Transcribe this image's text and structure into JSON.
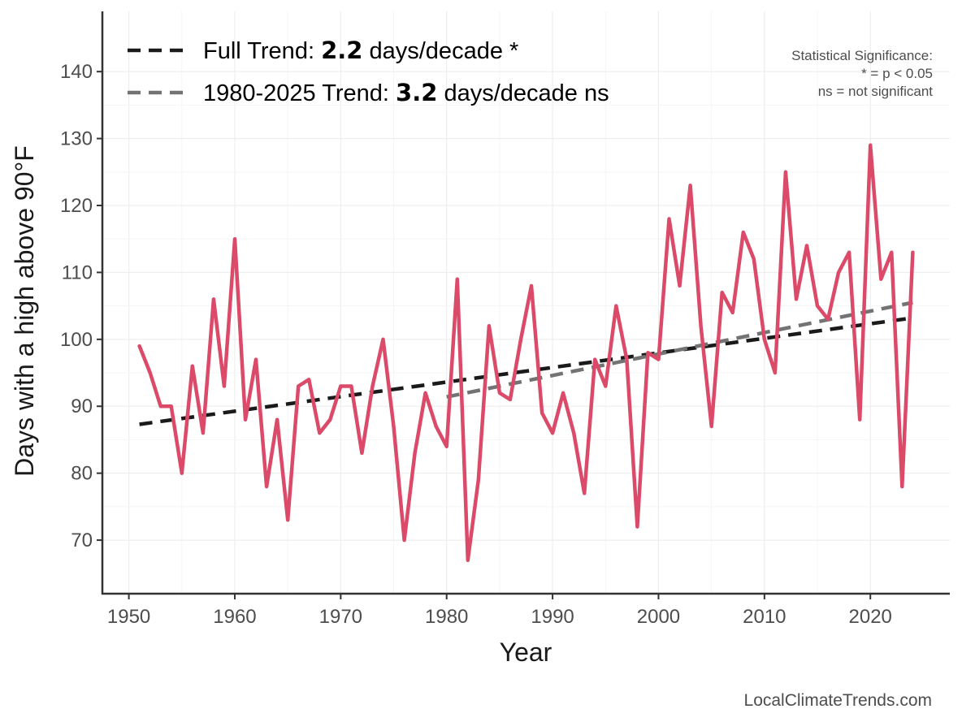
{
  "chart_data": {
    "type": "line",
    "title": "",
    "xlabel": "Year",
    "ylabel": "Days with a high above 90°F",
    "xlim": [
      1947.5,
      2027.5
    ],
    "ylim": [
      62,
      149
    ],
    "x_ticks": [
      1950,
      1960,
      1970,
      1980,
      1990,
      2000,
      2010,
      2020
    ],
    "y_ticks": [
      70,
      80,
      90,
      100,
      110,
      120,
      130,
      140
    ],
    "grid": true,
    "colors": {
      "series": "#dc4a6a",
      "full_trend": "#1a1a1a",
      "recent_trend": "#737373",
      "axis": "#333333",
      "grid": "#ebebeb"
    },
    "series": [
      {
        "name": "Days above 90°F",
        "x": [
          1951,
          1952,
          1953,
          1954,
          1955,
          1956,
          1957,
          1958,
          1959,
          1960,
          1961,
          1962,
          1963,
          1964,
          1965,
          1966,
          1967,
          1968,
          1969,
          1970,
          1971,
          1972,
          1973,
          1974,
          1975,
          1976,
          1977,
          1978,
          1979,
          1980,
          1981,
          1982,
          1983,
          1984,
          1985,
          1986,
          1987,
          1988,
          1989,
          1990,
          1991,
          1992,
          1993,
          1994,
          1995,
          1996,
          1997,
          1998,
          1999,
          2000,
          2001,
          2002,
          2003,
          2004,
          2005,
          2006,
          2007,
          2008,
          2009,
          2010,
          2011,
          2012,
          2013,
          2014,
          2015,
          2016,
          2017,
          2018,
          2019,
          2020,
          2021,
          2022,
          2023,
          2024
        ],
        "y": [
          99,
          95,
          90,
          90,
          80,
          96,
          86,
          106,
          93,
          115,
          88,
          97,
          78,
          88,
          73,
          93,
          94,
          86,
          88,
          93,
          93,
          83,
          93,
          100,
          87,
          70,
          83,
          92,
          87,
          84,
          109,
          67,
          79,
          102,
          92,
          91,
          100,
          108,
          89,
          86,
          92,
          86,
          77,
          97,
          93,
          105,
          97,
          72,
          98,
          97,
          118,
          108,
          123,
          102,
          87,
          107,
          104,
          116,
          112,
          100,
          95,
          125,
          106,
          114,
          105,
          103,
          110,
          113,
          88,
          129,
          109,
          113,
          78,
          113
        ]
      }
    ],
    "trends": [
      {
        "name": "Full Trend",
        "slope_label": "2.2",
        "unit_label": "days/decade",
        "significance": "*",
        "x": [
          1951,
          2024
        ],
        "y": [
          87.3,
          103.2
        ]
      },
      {
        "name": "1980-2025 Trend",
        "slope_label": "3.2",
        "unit_label": "days/decade",
        "significance": "ns",
        "x": [
          1980,
          2024
        ],
        "y": [
          91.4,
          105.5
        ]
      }
    ],
    "legend": {
      "position": "top-left",
      "entries": [
        {
          "prefix": "Full Trend: ",
          "bold": "2.2",
          "suffix": " days/decade *"
        },
        {
          "prefix": "1980-2025 Trend: ",
          "bold": "3.2",
          "suffix": " days/decade ns"
        }
      ]
    },
    "significance_note": {
      "position": "top-right",
      "lines": [
        "Statistical Significance:",
        "* = p < 0.05",
        "ns = not significant"
      ]
    }
  },
  "caption": "LocalClimateTrends.com"
}
